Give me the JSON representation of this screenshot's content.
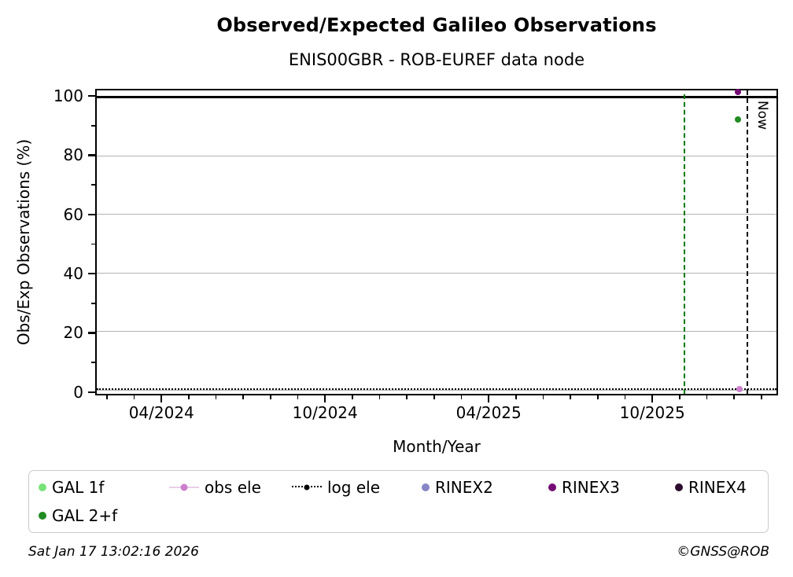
{
  "header": {
    "title": "Observed/Expected Galileo Observations",
    "subtitle": "ENIS00GBR - ROB-EUREF data node"
  },
  "footer": {
    "timestamp": "Sat Jan 17 13:02:16 2026",
    "copyright": "©GNSS@ROB"
  },
  "chart_data": {
    "type": "scatter",
    "title": "Observed/Expected Galileo Observations",
    "subtitle": "ENIS00GBR - ROB-EUREF data node",
    "xlabel": "Month/Year",
    "ylabel": "Obs/Exp Observations (%)",
    "x_unit": "months since 2024-01",
    "xlim": [
      0.57,
      25.61
    ],
    "ylim": [
      -1.1,
      102.4
    ],
    "grid": true,
    "grid_color": "#B3B3B3",
    "y_gridline_values": [
      0,
      20,
      40,
      60,
      80,
      100
    ],
    "hline_value": 100,
    "x_major_ticks": [
      {
        "month": 3,
        "label": "04/2024"
      },
      {
        "month": 9,
        "label": "10/2024"
      },
      {
        "month": 15,
        "label": "04/2025"
      },
      {
        "month": 21,
        "label": "10/2025"
      }
    ],
    "x_minor_months": [
      1,
      2,
      4,
      5,
      6,
      7,
      8,
      10,
      11,
      12,
      13,
      14,
      16,
      17,
      18,
      19,
      20,
      22,
      23,
      24,
      25
    ],
    "y_major_ticks": [
      {
        "value": 0,
        "label": "0"
      },
      {
        "value": 20,
        "label": "20"
      },
      {
        "value": 40,
        "label": "40"
      },
      {
        "value": 60,
        "label": "60"
      },
      {
        "value": 80,
        "label": "80"
      },
      {
        "value": 100,
        "label": "100"
      }
    ],
    "y_minor_values": [
      10,
      30,
      50,
      70,
      90
    ],
    "vlines": [
      {
        "name": "last-log",
        "month": 22.2,
        "color": "#007A00",
        "style": "dashed",
        "label": ""
      },
      {
        "name": "now",
        "month": 24.5,
        "color": "#000000",
        "style": "dashed",
        "label": "Now"
      }
    ],
    "legend_position": "below",
    "series": [
      {
        "name": "GAL 1f",
        "marker": "dot",
        "marker_color": "#78E378",
        "points": []
      },
      {
        "name": "GAL 2+f",
        "marker": "dot",
        "marker_color": "#228B22",
        "points": [
          {
            "month": 24.2,
            "value": 92.5
          }
        ]
      },
      {
        "name": "obs ele",
        "marker": "dot-line",
        "marker_color": "#CD7FCD",
        "line_color": "#E8CEE8",
        "points": [
          {
            "month": 24.25,
            "value": 0.4
          }
        ]
      },
      {
        "name": "log ele",
        "marker": "dot-dotted-line",
        "marker_color": "#000000",
        "line_color": "#000000",
        "constant_value": 0.5,
        "points": []
      },
      {
        "name": "RINEX2",
        "marker": "dot",
        "marker_color": "#8686C4",
        "points": []
      },
      {
        "name": "RINEX3",
        "marker": "dot",
        "marker_color": "#740974",
        "points": [
          {
            "month": 24.2,
            "value": 101.9
          }
        ]
      },
      {
        "name": "RINEX4",
        "marker": "dot",
        "marker_color": "#2D0C2D",
        "points": []
      }
    ]
  }
}
